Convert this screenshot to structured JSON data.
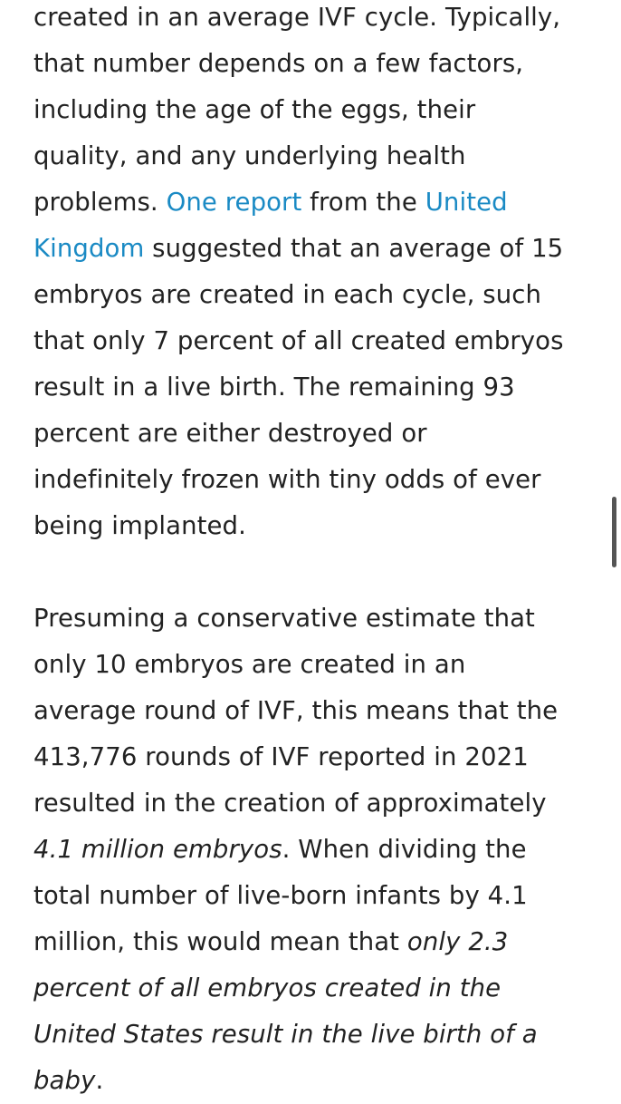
{
  "paragraph1": {
    "l1": "created in an average IVF cycle. Typically,",
    "l2": "that number depends on a few factors,",
    "l3": "including the age of the eggs, their",
    "l4": "quality, and any underlying health",
    "l5_text": "problems. ",
    "link_one_report": "One report",
    "l5_mid": " from the ",
    "link_uk_part1": "United",
    "link_uk_part2": "Kingdom",
    "l6_text": " suggested that an average of 15",
    "l7": "embryos are created in each cycle, such",
    "l8": "that only 7 percent of all created embryos",
    "l9": "result in a live birth. The remaining 93",
    "l10": "percent are either destroyed or",
    "l11": "indefinitely frozen with tiny odds of ever",
    "l12": "being implanted."
  },
  "paragraph2": {
    "l1": "Presuming a conservative estimate that",
    "l2": "only 10 embryos are created in an",
    "l3": "average round of IVF, this means that the",
    "l4": "413,776 rounds of IVF reported in 2021",
    "l5": "resulted in the creation of approximately",
    "l6_em": "4.1 million embryos",
    "l6_text": ". When dividing the",
    "l7": "total number of live-born infants by 4.1",
    "l8_text": "million, this would mean that ",
    "l8_em": "only 2.3",
    "l9_em": "percent of all embryos created in the",
    "l10_em": "United States result in the live birth of a",
    "l11_em": "baby",
    "l11_text": "."
  },
  "colors": {
    "text": "#222222",
    "link": "#1a8ac4",
    "scrollbar": "#555555"
  }
}
